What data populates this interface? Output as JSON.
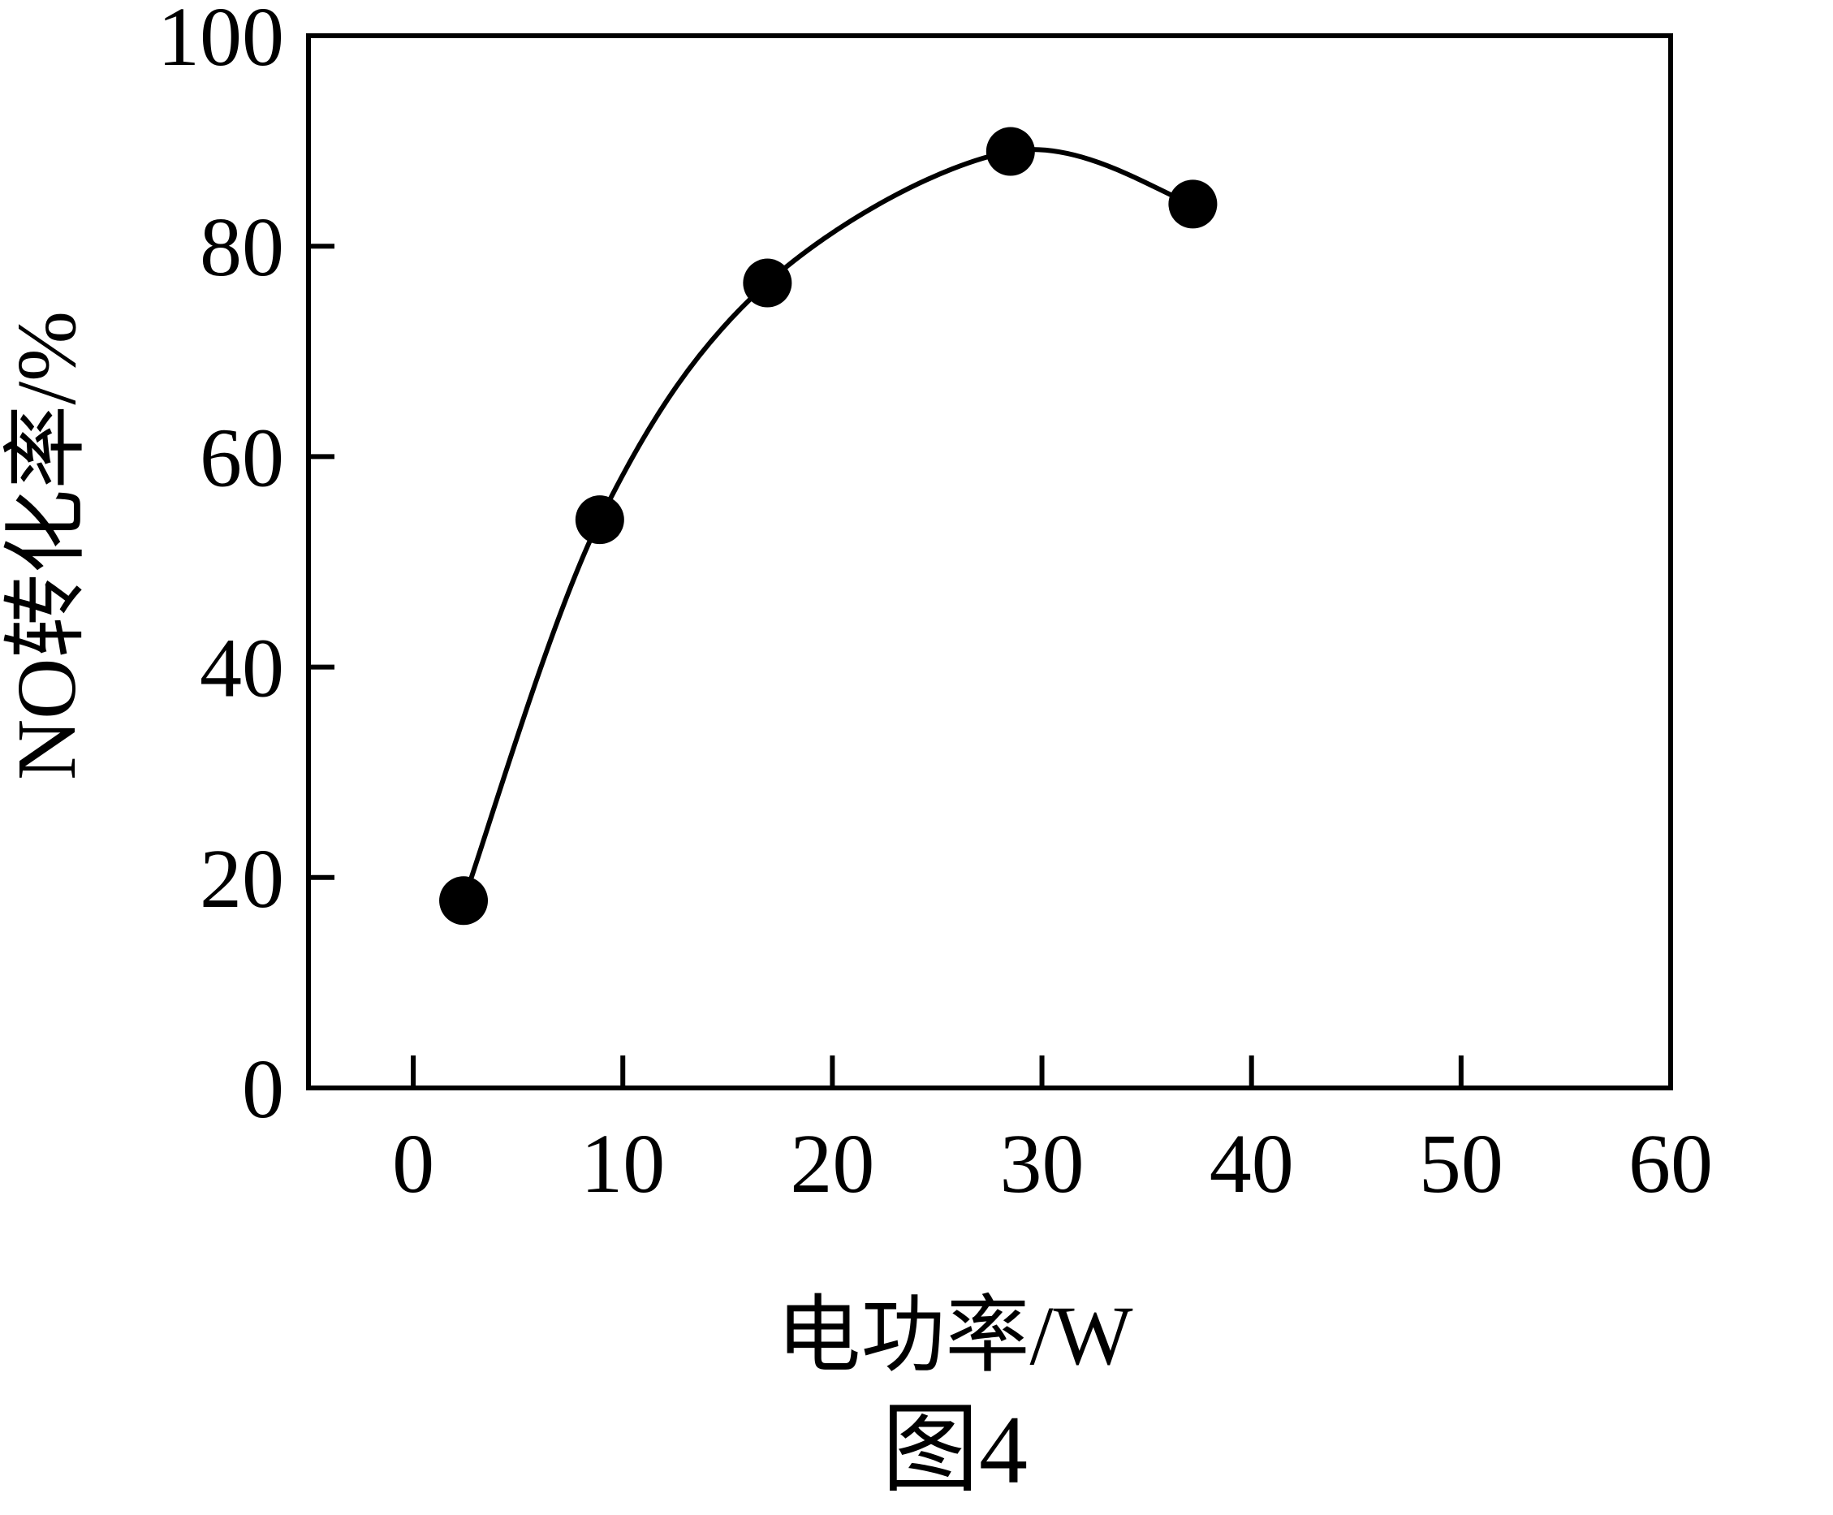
{
  "chart_data": {
    "type": "scatter",
    "xlabel": "电功率/W",
    "ylabel": "NO转化率/%",
    "caption": "图4",
    "xlim": [
      -5,
      60
    ],
    "ylim": [
      0,
      100
    ],
    "xticks": [
      0,
      10,
      20,
      30,
      40,
      50,
      60
    ],
    "yticks": [
      0,
      20,
      40,
      60,
      80,
      100
    ],
    "grid": false,
    "smooth_curve": true,
    "series": [
      {
        "x": [
          2.4,
          8.9,
          16.9,
          28.5,
          37.2
        ],
        "y": [
          17.8,
          54,
          76.5,
          89,
          84
        ]
      }
    ]
  }
}
